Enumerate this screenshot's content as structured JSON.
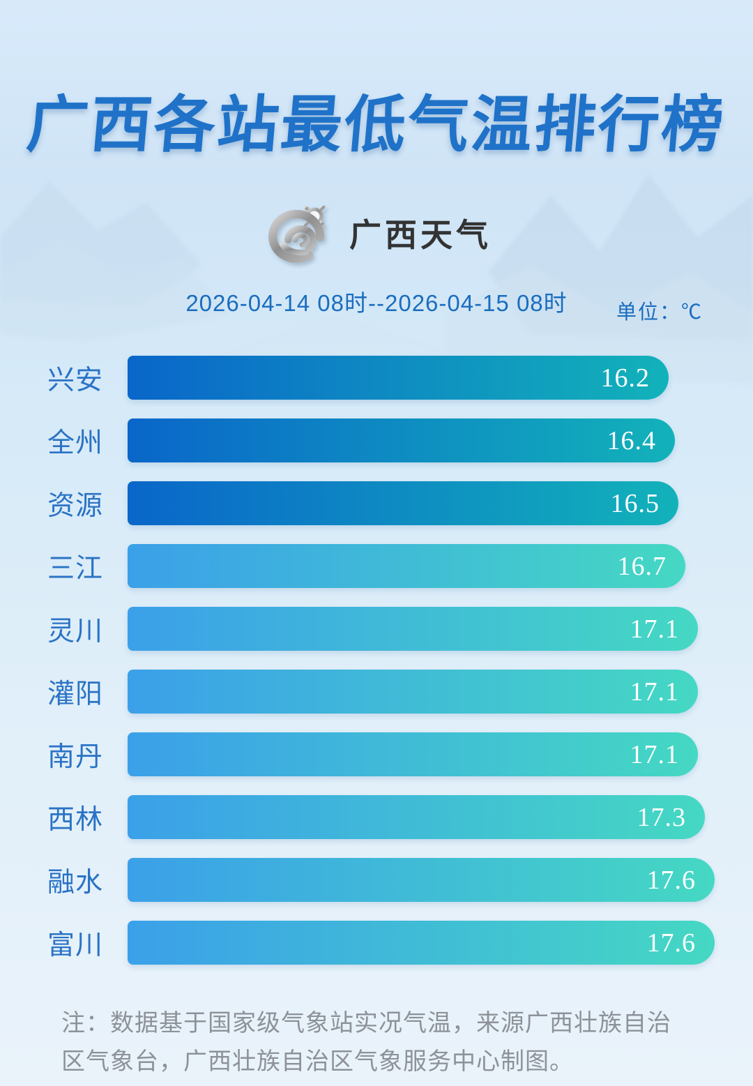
{
  "page": {
    "title": "广西各站最低气温排行榜",
    "brand": {
      "logo_icon": "cloud-sun-swirl-icon",
      "name": "广西天气"
    },
    "period": "2026-04-14 08时--2026-04-15 08时",
    "unit_label": "单位：℃",
    "note": "注：数据基于国家级气象站实况气温，来源广西壮族自治区气象台，广西壮族自治区气象服务中心制图。"
  },
  "colors": {
    "title_blue": "#1f72c8",
    "text_blue": "#1a6dbe",
    "label_blue": "#2a73c5",
    "note_gray": "#8d9298",
    "value_text": "#ffffff",
    "bar_top3_start": "#0a66c9",
    "bar_top3_end": "#12b2ba",
    "bar_rest_start": "#3ba0e9",
    "bar_rest_end": "#45d8c3"
  },
  "chart_data": {
    "type": "bar",
    "orientation": "horizontal",
    "title": "广西各站最低气温排行榜",
    "subtitle": "2026-04-14 08时--2026-04-15 08时",
    "unit": "℃",
    "legend": "none",
    "grid": false,
    "categories": [
      "兴安",
      "全州",
      "资源",
      "三江",
      "灵川",
      "灌阳",
      "南丹",
      "西林",
      "融水",
      "富川"
    ],
    "values": [
      16.2,
      16.4,
      16.5,
      16.7,
      17.1,
      17.1,
      17.1,
      17.3,
      17.6,
      17.6
    ],
    "value_labels": [
      "16.2",
      "16.4",
      "16.5",
      "16.7",
      "17.1",
      "17.1",
      "17.1",
      "17.3",
      "17.6",
      "17.6"
    ],
    "highlight_top_n": 3
  }
}
